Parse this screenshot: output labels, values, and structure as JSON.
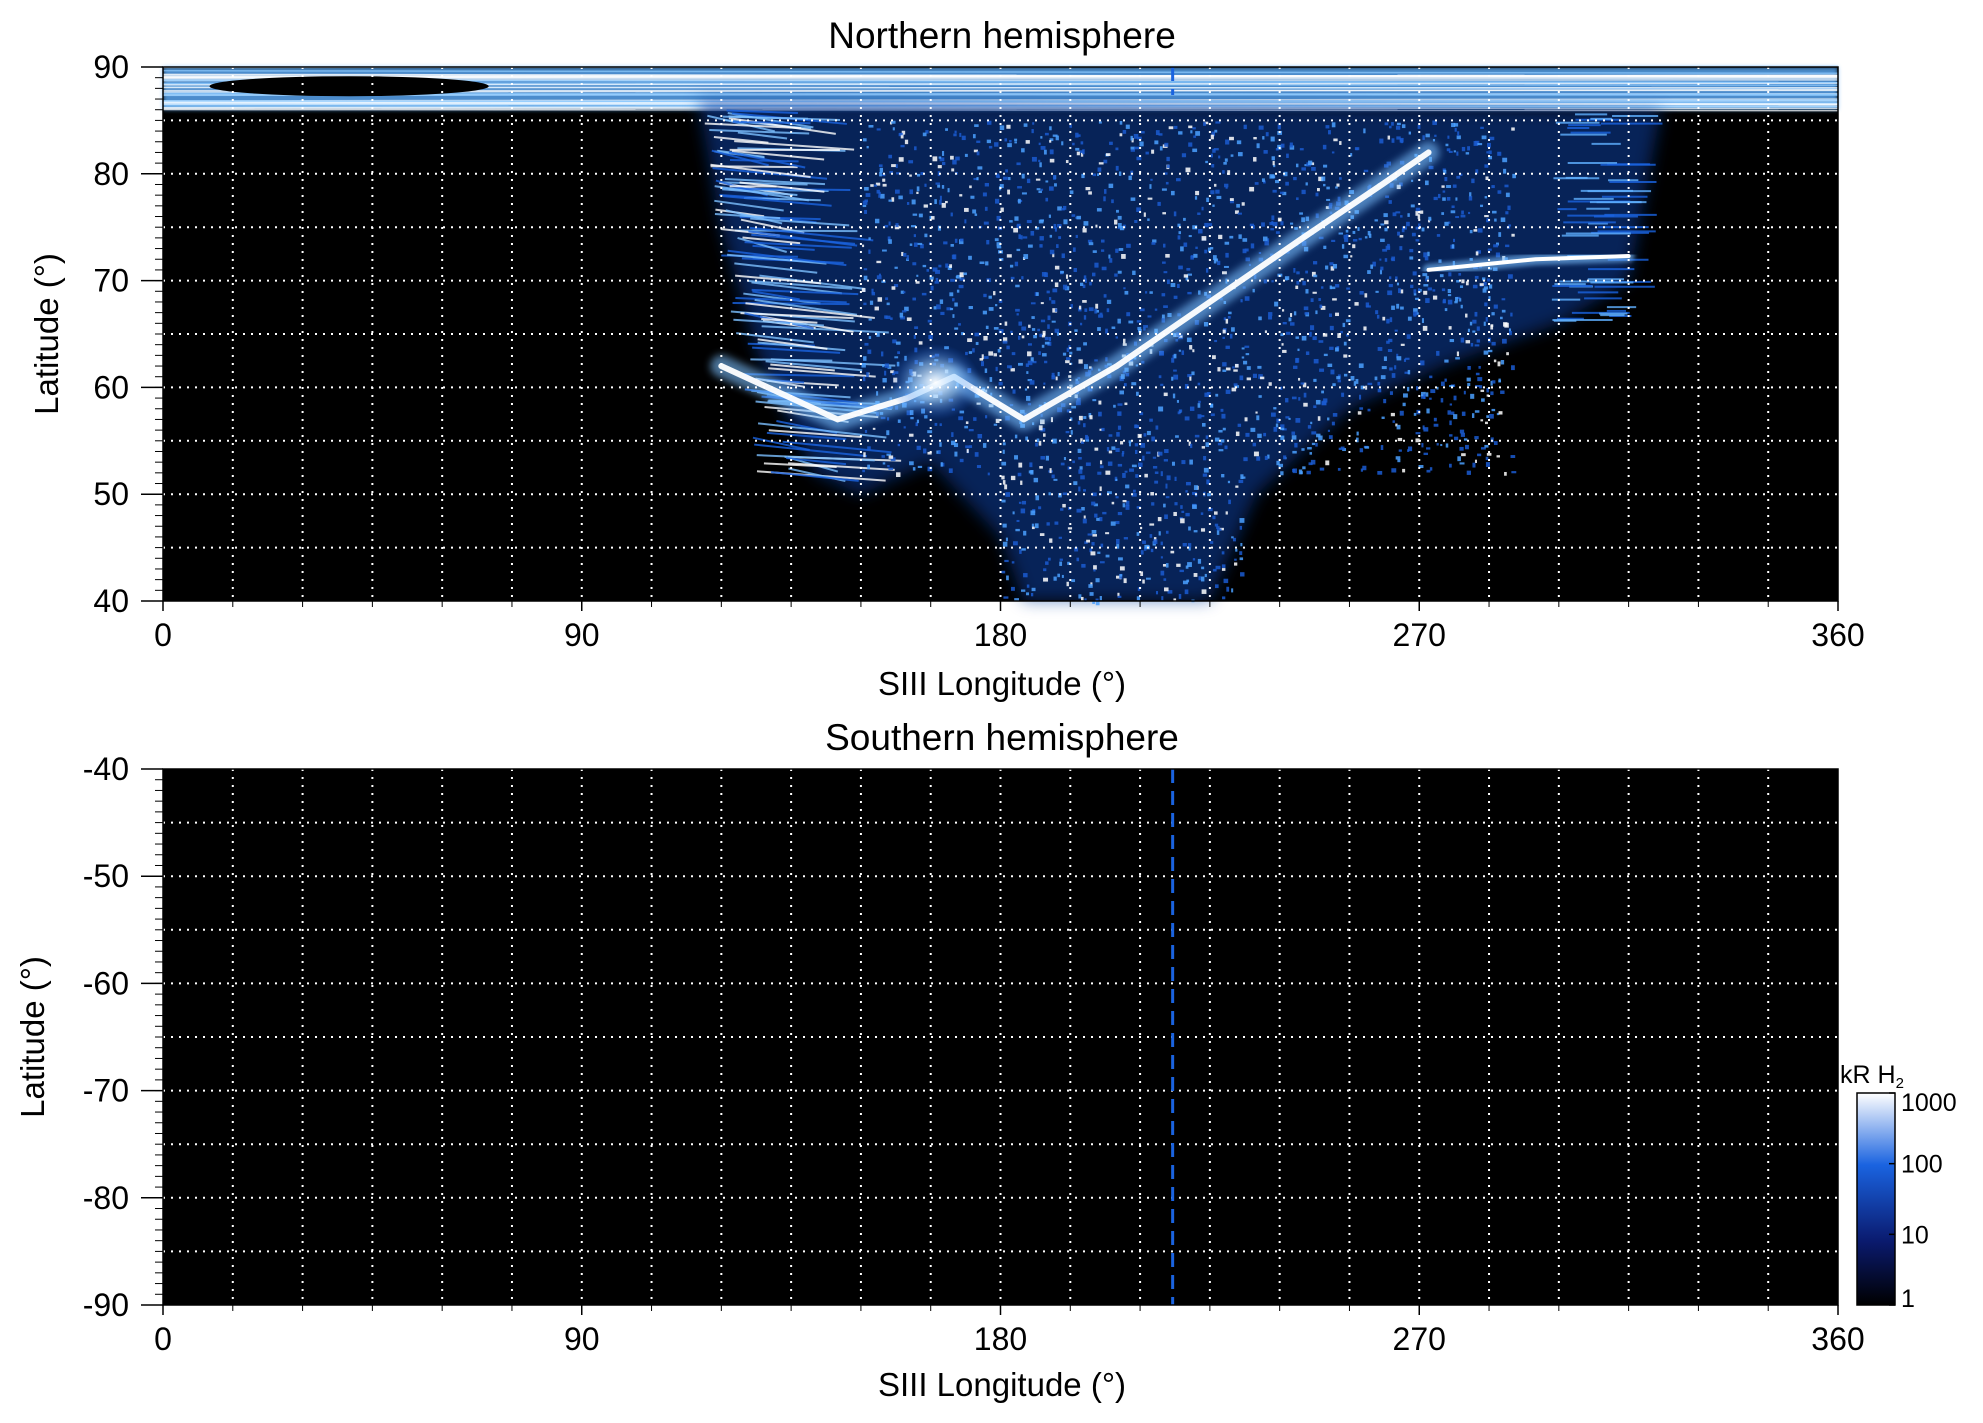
{
  "chart_data": [
    {
      "type": "heatmap",
      "title": "Northern hemisphere",
      "xlabel": "SIII Longitude (°)",
      "ylabel": "Latitude (°)",
      "xlim": [
        0,
        360
      ],
      "ylim": [
        40,
        90
      ],
      "x_ticks": [
        "0",
        "90",
        "180",
        "270",
        "360"
      ],
      "y_ticks": [
        "40",
        "50",
        "60",
        "70",
        "80",
        "90"
      ],
      "grid": true,
      "colormap": "black-blue-white",
      "features": {
        "polar_cap_band": {
          "lat_min": 86,
          "lat_max": 90,
          "lon_range": [
            0,
            360
          ]
        },
        "main_oval": [
          [
            120,
            62
          ],
          [
            145,
            57
          ],
          [
            160,
            59
          ],
          [
            170,
            61
          ],
          [
            185,
            57
          ],
          [
            205,
            62
          ],
          [
            225,
            68
          ],
          [
            245,
            74
          ],
          [
            262,
            79
          ],
          [
            272,
            82
          ]
        ],
        "secondary_arc": [
          [
            272,
            71
          ],
          [
            295,
            72
          ],
          [
            315,
            72.3
          ]
        ],
        "equatorial_emission": {
          "lon_range": [
            180,
            225
          ],
          "lat_min": 40
        }
      },
      "sublongitude_marker": 217
    },
    {
      "type": "heatmap",
      "title": "Southern hemisphere",
      "xlabel": "SIII Longitude (°)",
      "ylabel": "Latitude (°)",
      "xlim": [
        0,
        360
      ],
      "ylim": [
        -90,
        -40
      ],
      "x_ticks": [
        "0",
        "90",
        "180",
        "270",
        "360"
      ],
      "y_ticks": [
        "-40",
        "-50",
        "-60",
        "-70",
        "-80",
        "-90"
      ],
      "grid": true,
      "sublongitude_marker": 217,
      "colorbar": {
        "label_main": "kR H",
        "label_sub": "2",
        "scale": "log",
        "range": [
          1,
          1000
        ],
        "ticks": [
          "1",
          "10",
          "100",
          "1000"
        ],
        "colors": [
          "#000000",
          "#0a1a6e",
          "#1a63e0",
          "#ffffff"
        ]
      }
    }
  ]
}
